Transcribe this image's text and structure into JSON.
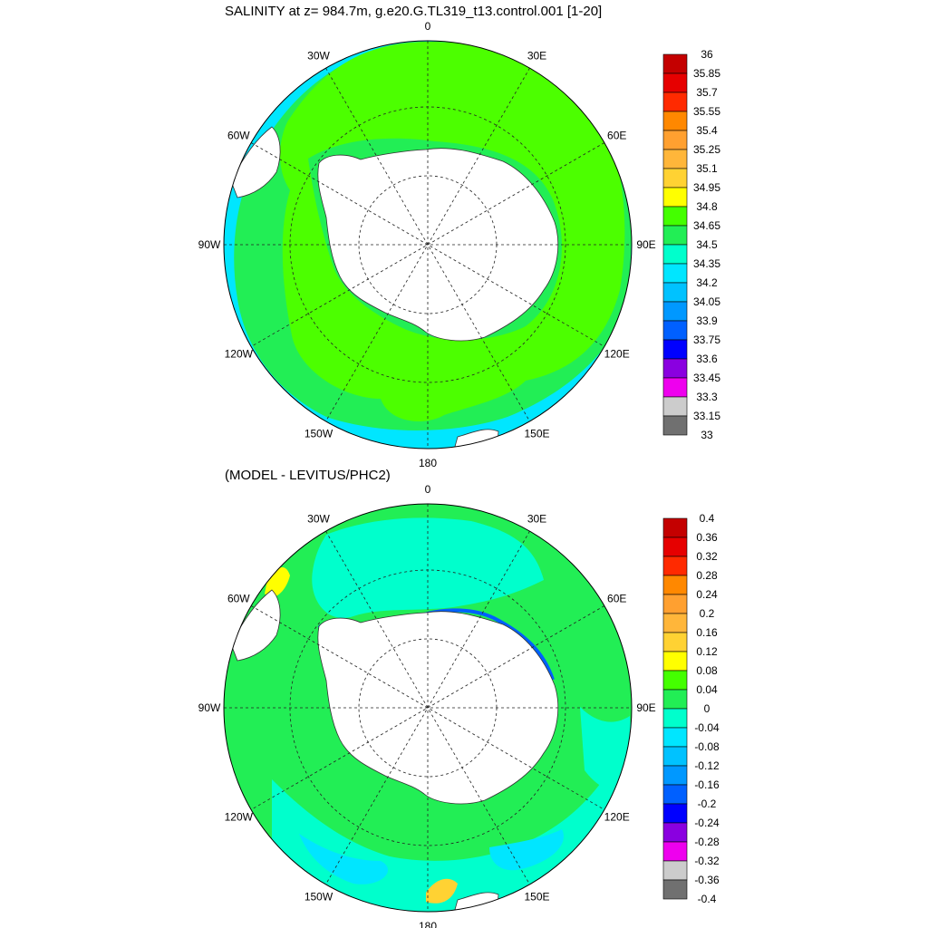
{
  "top_panel": {
    "title": "SALINITY at z= 984.7m, g.e20.G.TL319_t13.control.001 [1-20]",
    "lon_labels": [
      "0",
      "30E",
      "60E",
      "90E",
      "120E",
      "150E",
      "180",
      "150W",
      "120W",
      "90W",
      "60W",
      "30W"
    ],
    "colorbar": {
      "labels": [
        "36",
        "35.85",
        "35.7",
        "35.55",
        "35.4",
        "35.25",
        "35.1",
        "34.95",
        "34.8",
        "34.65",
        "34.5",
        "34.35",
        "34.2",
        "34.05",
        "33.9",
        "33.75",
        "33.6",
        "33.45",
        "33.3",
        "33.15",
        "33"
      ],
      "colors": [
        "#c40000",
        "#e60000",
        "#ff2a00",
        "#ff8800",
        "#ffa030",
        "#ffb63a",
        "#ffd233",
        "#ffff00",
        "#44ff00",
        "#22ee55",
        "#00ffcc",
        "#00e6ff",
        "#00c2ff",
        "#0098ff",
        "#0060ff",
        "#0000ff",
        "#8a00e0",
        "#ee00ee",
        "#cccccc",
        "#707070"
      ]
    }
  },
  "bottom_panel": {
    "title": "(MODEL - LEVITUS/PHC2)",
    "lon_labels": [
      "0",
      "30E",
      "60E",
      "90E",
      "120E",
      "150E",
      "180",
      "150W",
      "120W",
      "90W",
      "60W",
      "30W"
    ],
    "colorbar": {
      "labels": [
        "0.4",
        "0.36",
        "0.32",
        "0.28",
        "0.24",
        "0.2",
        "0.16",
        "0.12",
        "0.08",
        "0.04",
        "0",
        "-0.04",
        "-0.08",
        "-0.12",
        "-0.16",
        "-0.2",
        "-0.24",
        "-0.28",
        "-0.32",
        "-0.36",
        "-0.4"
      ],
      "colors": [
        "#c40000",
        "#e60000",
        "#ff2a00",
        "#ff8800",
        "#ffa030",
        "#ffb63a",
        "#ffd233",
        "#ffff00",
        "#44ff00",
        "#22ee55",
        "#00ffcc",
        "#00e6ff",
        "#00c2ff",
        "#0098ff",
        "#0060ff",
        "#0000ff",
        "#8a00e0",
        "#ee00ee",
        "#cccccc",
        "#707070"
      ]
    }
  }
}
